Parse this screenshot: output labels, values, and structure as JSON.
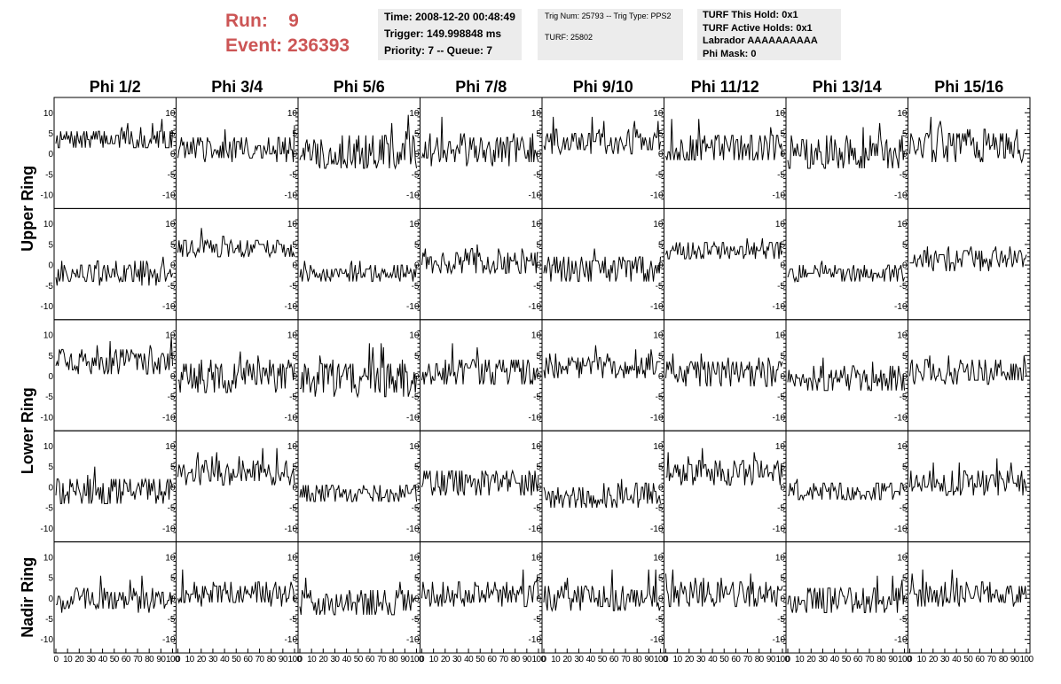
{
  "header": {
    "run_label": "Run:",
    "run_value": "9",
    "event_label": "Event:",
    "event_value": "236393"
  },
  "info_boxes": {
    "time": "Time: 2008-12-20 00:48:49",
    "trigger": "Trigger: 149.998848 ms",
    "priority": "Priority: 7 -- Queue: 7",
    "trig_num": "Trig Num: 25793 -- Trig Type: PPS2",
    "turf": "TURF: 25802",
    "turf_hold": "TURF This Hold: 0x1",
    "turf_active": "TURF Active Holds: 0x1",
    "labrador": "Labrador AAAAAAAAAA",
    "phi_mask": "Phi Mask: 0"
  },
  "colors": {
    "accent": "#cc5555",
    "info_bg": "#ececec",
    "trace": "#000000"
  },
  "chart_data": {
    "type": "line",
    "columns": [
      "Phi 1/2",
      "Phi 3/4",
      "Phi 5/6",
      "Phi 7/8",
      "Phi 9/10",
      "Phi 11/12",
      "Phi 13/14",
      "Phi 15/16"
    ],
    "rings": [
      "Upper Ring",
      "Lower Ring",
      "Nadir Ring"
    ],
    "rows_per_ring": [
      2,
      2,
      1
    ],
    "x_range": [
      0,
      100
    ],
    "y_range": [
      -12,
      12
    ],
    "y_ticks": [
      -10,
      -5,
      0,
      5,
      10
    ],
    "x_ticks": [
      0,
      10,
      20,
      30,
      40,
      50,
      60,
      70,
      80,
      90,
      100
    ],
    "samples_per_trace": 100,
    "baselines": [
      [
        3.5,
        1,
        0.5,
        1,
        3,
        1.5,
        0.5,
        2
      ],
      [
        -2,
        4,
        -2,
        1,
        -1,
        3.5,
        -2,
        1.5
      ],
      [
        3.5,
        0,
        -1,
        1,
        2.5,
        0.5,
        -0.5,
        1
      ],
      [
        -1,
        3.5,
        -1.5,
        1,
        -2,
        3.5,
        -1,
        1
      ],
      [
        -0.5,
        1,
        -1,
        1,
        0,
        1,
        -0.5,
        1
      ]
    ],
    "amplitudes": [
      [
        2.5,
        3,
        4.5,
        4,
        3,
        3.5,
        4,
        4
      ],
      [
        3,
        2.5,
        2,
        3.5,
        3.5,
        2.5,
        2.5,
        3
      ],
      [
        3,
        4,
        4.5,
        3.5,
        3,
        3.5,
        3.5,
        3
      ],
      [
        3.5,
        3,
        2.5,
        3.5,
        3,
        3,
        2.5,
        3
      ],
      [
        3,
        3,
        3.5,
        3.5,
        3.5,
        3.5,
        3.5,
        3
      ]
    ]
  }
}
